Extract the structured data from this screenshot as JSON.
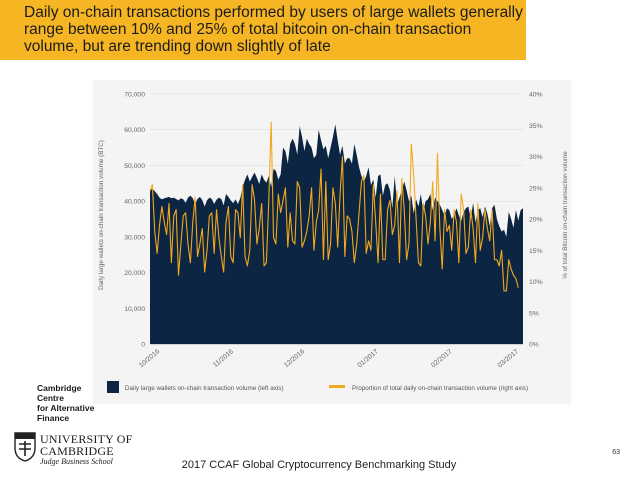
{
  "slide": {
    "headline": "Daily on-chain transactions performed by users of large wallets generally range between 10% and 25% of total bitcoin on-chain transaction volume, but are trending down slightly of late",
    "footer": "2017 CCAF Global Cryptocurrency Benchmarking Study",
    "page_number": "63",
    "colors": {
      "banner": "#f6b523",
      "area": "#0b2542",
      "line": "#f2a81d"
    }
  },
  "logos": {
    "ccaf": [
      "Cambridge",
      "Centre",
      "for Alternative",
      "Finance"
    ],
    "university": [
      "UNIVERSITY OF",
      "CAMBRIDGE",
      "Judge Business School"
    ]
  },
  "chart_data": {
    "type": "area",
    "xlabel": "",
    "ylabel_left": "Daily large wallets on-chain transaction volume (BTC)",
    "ylabel_right": "% of total Bitcoin on-chain transaction volume",
    "ylim_left": [
      0,
      70000
    ],
    "ylim_right": [
      0,
      40
    ],
    "y_ticks_left": [
      "0",
      "10,000",
      "20,000",
      "30,000",
      "40,000",
      "50,000",
      "60,000",
      "70,000"
    ],
    "y_ticks_right": [
      "0%",
      "5%",
      "10%",
      "15%",
      "20%",
      "25%",
      "30%",
      "35%",
      "40%"
    ],
    "x_ticks": [
      "10/2016",
      "11/2016",
      "12/2016",
      "01/2017",
      "02/2017",
      "03/2017"
    ],
    "x_tick_days": [
      0,
      31,
      61,
      92,
      123,
      151
    ],
    "grid": true,
    "legend_position": "bottom",
    "series": [
      {
        "name": "Daily large wallets on-chain transaction volume (left axis)",
        "kind": "area",
        "axis": "left",
        "color": "#0b2542",
        "values": [
          43000,
          43500,
          42800,
          42000,
          41000,
          40500,
          40800,
          41000,
          41200,
          40800,
          41000,
          40600,
          40200,
          40800,
          40500,
          39500,
          41000,
          41500,
          40800,
          39200,
          40600,
          41200,
          40300,
          38500,
          40200,
          41000,
          40600,
          39200,
          40400,
          41000,
          40600,
          38800,
          42000,
          41200,
          40200,
          39400,
          40500,
          39200,
          40800,
          44000,
          46000,
          47500,
          45500,
          46800,
          48000,
          46500,
          44800,
          47500,
          46000,
          45200,
          47000,
          44000,
          49000,
          48500,
          46000,
          47500,
          55000,
          54000,
          50500,
          56000,
          57500,
          56000,
          53000,
          61000,
          58000,
          54000,
          57500,
          56000,
          55000,
          52000,
          53000,
          60000,
          57000,
          54500,
          55500,
          52000,
          55000,
          58000,
          61500,
          57000,
          53000,
          55500,
          50500,
          52000,
          52000,
          50500,
          56000,
          53000,
          49500,
          47000,
          45500,
          47000,
          49500,
          44500,
          46000,
          41000,
          47000,
          47500,
          41500,
          44500,
          45000,
          43000,
          38000,
          47000,
          39000,
          41000,
          43000,
          45500,
          43000,
          40000,
          41500,
          36500,
          40500,
          38500,
          42000,
          37000,
          40000,
          40500,
          42000,
          37500,
          41000,
          40000,
          39000,
          37500,
          36000,
          38000,
          37500,
          35000,
          36000,
          38000,
          36000,
          34500,
          37000,
          38000,
          38500,
          35000,
          39500,
          34000,
          37500,
          38000,
          35500,
          38500,
          36500,
          33000,
          38000,
          39000,
          35000,
          33000,
          31500,
          32000,
          30000,
          37000,
          35000,
          32500,
          37500,
          34500,
          37500,
          38000
        ]
      },
      {
        "name": "Proportion of total daily on-chain transaction volume (right axis)",
        "kind": "line",
        "axis": "right",
        "color": "#f2a81d",
        "values": [
          24.5,
          25.5,
          18,
          14.5,
          19,
          22,
          19.5,
          17.5,
          22.5,
          13,
          20.5,
          21.5,
          11,
          16,
          20.5,
          21,
          16,
          13,
          19.5,
          23.5,
          14,
          16,
          18.5,
          11.5,
          15,
          20.5,
          21,
          14.5,
          21.5,
          17,
          14,
          11.5,
          19.5,
          22,
          14,
          13,
          21.5,
          21,
          17,
          25.5,
          14,
          12.5,
          15,
          25.5,
          23,
          16,
          18.5,
          22.5,
          12.5,
          13,
          23,
          35.5,
          17,
          16,
          24,
          21,
          23,
          25,
          15.5,
          21,
          16.5,
          16,
          26,
          25,
          15.5,
          16.5,
          18,
          20.5,
          25,
          15,
          19.5,
          21.5,
          28,
          13.5,
          26,
          13.5,
          16,
          25,
          22.5,
          15.5,
          24,
          30,
          14,
          20.5,
          20,
          18,
          13,
          16,
          21,
          26,
          27,
          14.5,
          16.5,
          15,
          25.5,
          19.5,
          13,
          24,
          13.5,
          13.5,
          21.5,
          23,
          17.5,
          19,
          24.5,
          13,
          26.5,
          21.5,
          13.5,
          16,
          32,
          27,
          20,
          13,
          12.5,
          22.5,
          20.5,
          16,
          19.5,
          26,
          16.5,
          30.5,
          18.5,
          12,
          21.5,
          18,
          19,
          15,
          21.5,
          19.5,
          13,
          24,
          21.5,
          14.5,
          15.5,
          21.5,
          18.5,
          13,
          22.5,
          15,
          17,
          21.5,
          18.5,
          16.5,
          21.5,
          13.5,
          13.5,
          12.5,
          15,
          8.5,
          8.5,
          13.5,
          12,
          11,
          10.5,
          9
        ]
      }
    ]
  }
}
